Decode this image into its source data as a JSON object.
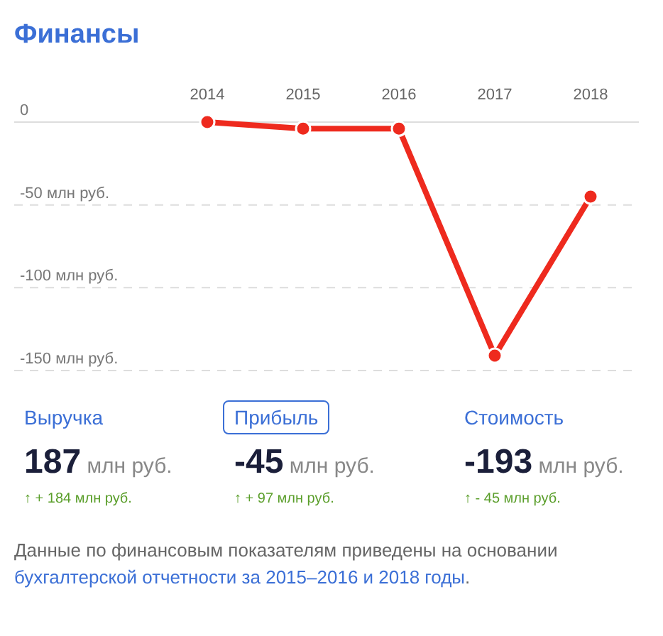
{
  "chart_data": [
    {
      "type": "line",
      "title": "Финансы",
      "categories": [
        "2014",
        "2015",
        "2016",
        "2017",
        "2018"
      ],
      "series": [
        {
          "color": "#ee2a1e",
          "values": [
            0,
            -4,
            -4,
            -141,
            -45
          ]
        }
      ],
      "ylim": [
        -150,
        0
      ],
      "yticks": [
        {
          "value": 0,
          "label": "0"
        },
        {
          "value": -50,
          "label": "-50 млн руб."
        },
        {
          "value": -100,
          "label": "-100 млн руб."
        },
        {
          "value": -150,
          "label": "-150 млн руб."
        }
      ],
      "grid": "y",
      "marker": "circle",
      "line_style": "solid"
    },
    {
      "type": "other",
      "annotations": [
        "Выручка",
        "187",
        "млн руб.",
        "↑ + 184 млн руб.",
        "Прибыль",
        "-45",
        "млн руб.",
        "↑ + 97 млн руб.",
        "Стоимость",
        "-193",
        "млн руб.",
        "↑ - 45 млн руб.",
        "Данные по финансовым показателям приведены на основании ",
        "бухгалтерской отчетности за 2015–2016 и 2018 годы",
        "."
      ]
    }
  ]
}
